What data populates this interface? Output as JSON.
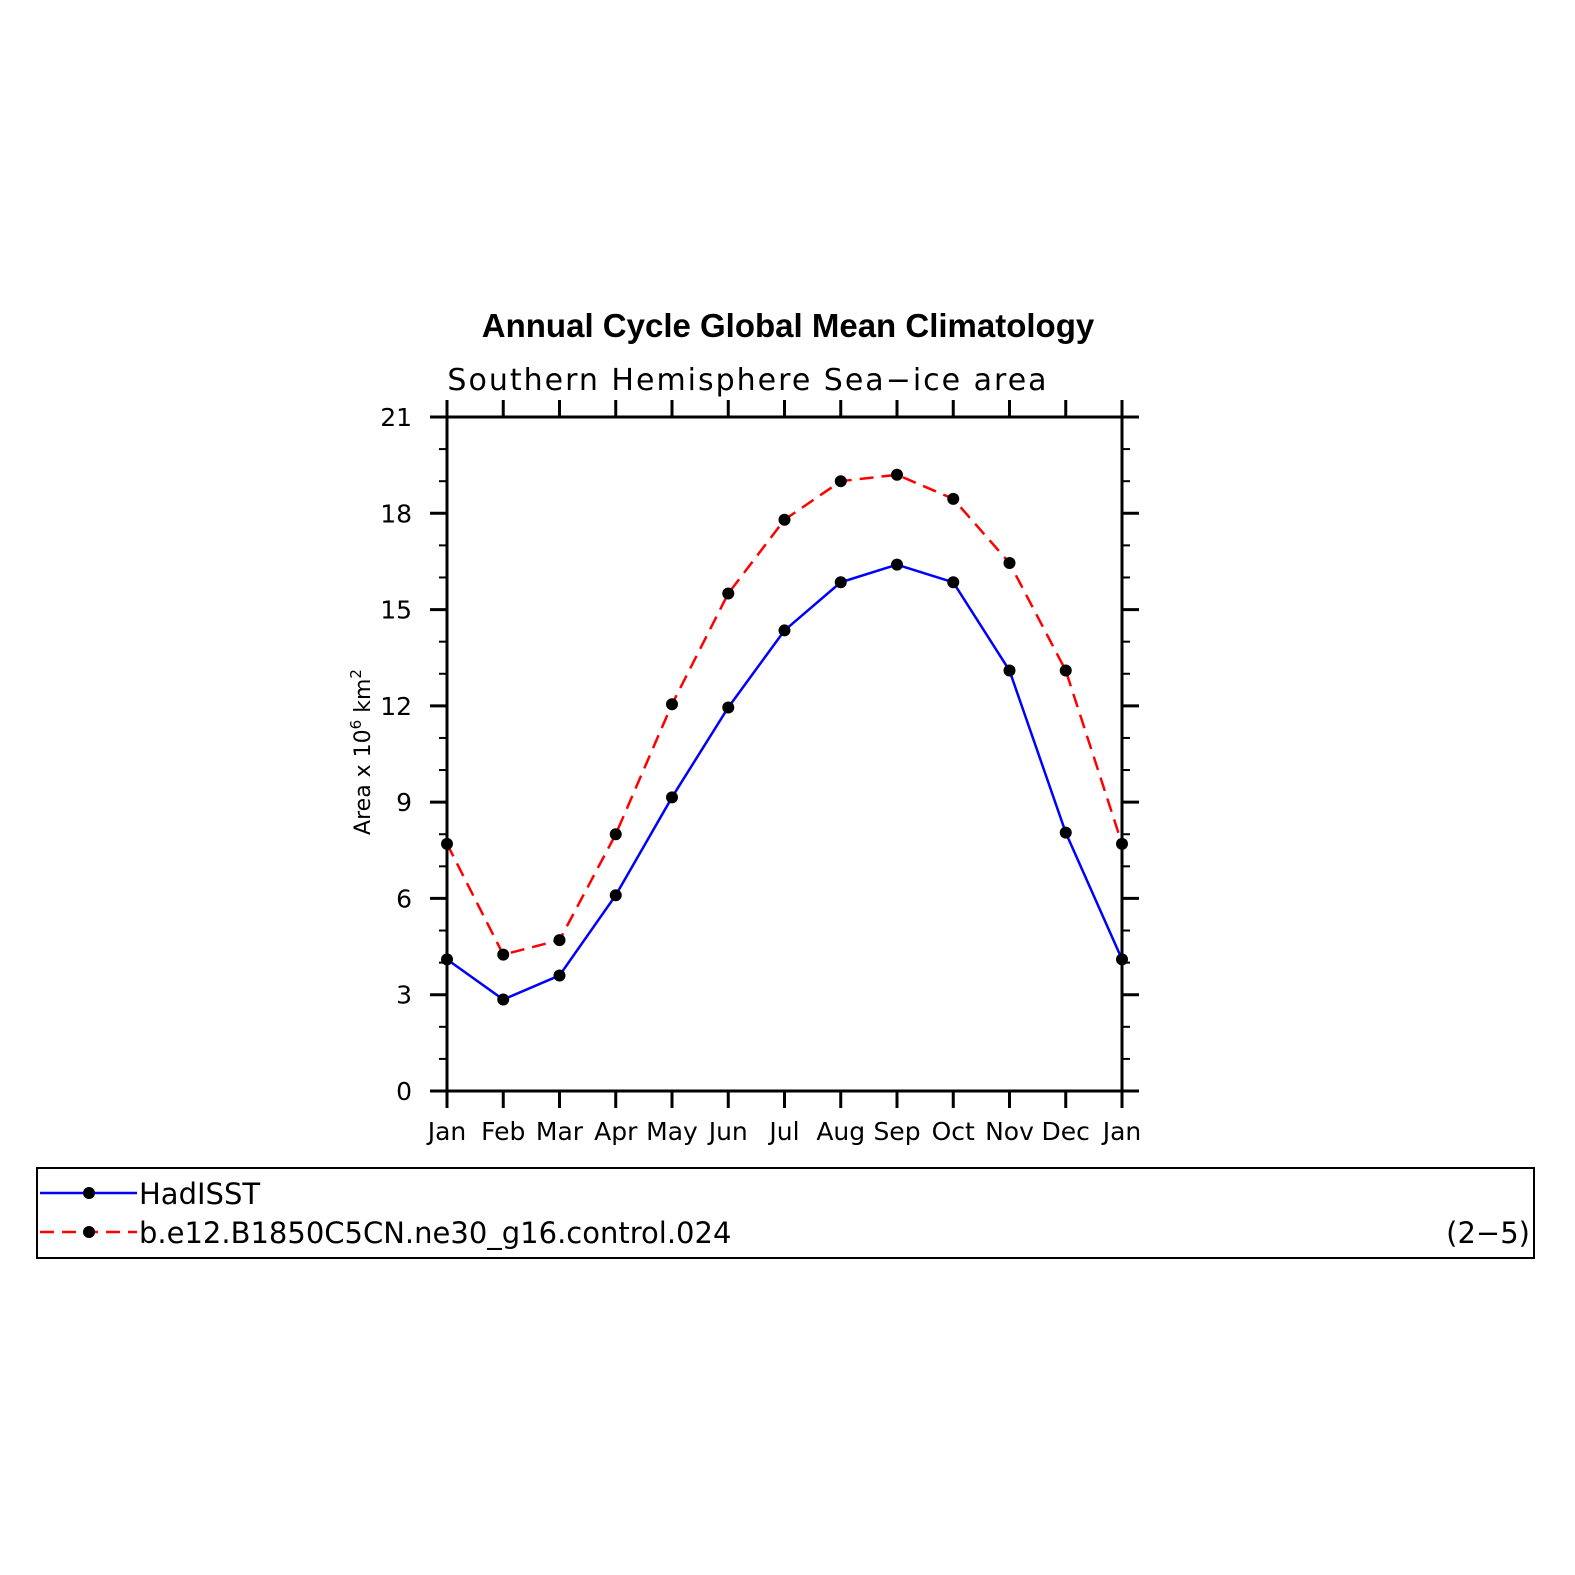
{
  "chart_data": {
    "type": "line",
    "title": "Annual Cycle Global Mean Climatology",
    "subtitle": "Southern Hemisphere Sea−ice area",
    "ylabel": "Area x 10",
    "ylabel_exp1": "6",
    "ylabel_mid": " km",
    "ylabel_exp2": "2",
    "xlabel": "",
    "categories": [
      "Jan",
      "Feb",
      "Mar",
      "Apr",
      "May",
      "Jun",
      "Jul",
      "Aug",
      "Sep",
      "Oct",
      "Nov",
      "Dec",
      "Jan"
    ],
    "ylim": [
      0,
      21
    ],
    "yticks": [
      0,
      3,
      6,
      9,
      12,
      15,
      18,
      21
    ],
    "series": [
      {
        "name": "HadISST",
        "color": "#0000ff",
        "dash": "solid",
        "values": [
          4.1,
          2.85,
          3.6,
          6.1,
          9.15,
          11.95,
          14.35,
          15.85,
          16.4,
          15.85,
          13.1,
          8.05,
          4.1
        ]
      },
      {
        "name": "b.e12.B1850C5CN.ne30_g16.control.024",
        "color": "#ff0000",
        "dash": "dashed",
        "values": [
          7.7,
          4.25,
          4.7,
          8.0,
          12.05,
          15.5,
          17.8,
          19.0,
          19.2,
          18.45,
          16.45,
          13.1,
          7.7
        ]
      }
    ],
    "legend_note": "(2−5)"
  }
}
